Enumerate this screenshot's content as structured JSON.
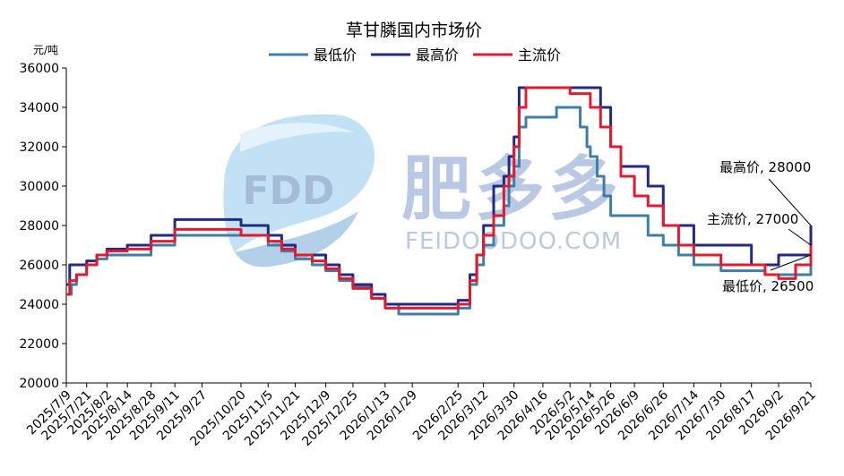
{
  "chart_data": {
    "type": "line",
    "title": "草甘膦国内市场价",
    "ylabel": "元/吨",
    "ylim": [
      20000,
      36000
    ],
    "yticks": [
      20000,
      22000,
      24000,
      26000,
      28000,
      30000,
      32000,
      34000,
      36000
    ],
    "yticklabels": [
      "20000",
      "22000",
      "24000",
      "26000",
      "28000",
      "30000",
      "32000",
      "34000",
      "36000"
    ],
    "grid": false,
    "legend_position": "top-center",
    "x_range": [
      "2025/7/9",
      "2026/9/21"
    ],
    "xticklabels": [
      "2025/7/9",
      "2025/7/21",
      "2025/8/2",
      "2025/8/14",
      "2025/8/28",
      "2025/9/11",
      "2025/9/27",
      "2025/10/20",
      "2025/11/5",
      "2025/11/21",
      "2025/12/9",
      "2025/12/25",
      "2026/1/13",
      "2026/1/29",
      "2026/2/25",
      "2026/3/12",
      "2026/3/30",
      "2026/4/16",
      "2026/5/2",
      "2026/5/14",
      "2026/5/26",
      "2026/6/9",
      "2026/6/26",
      "2026/7/14",
      "2026/7/30",
      "2026/8/17",
      "2026/9/2",
      "2026/9/21"
    ],
    "series": [
      {
        "name": "最低价",
        "color": "#3e7ea8",
        "x": [
          "2025/7/9",
          "2025/7/12",
          "2025/7/15",
          "2025/7/21",
          "2025/7/27",
          "2025/8/2",
          "2025/8/14",
          "2025/8/28",
          "2025/9/11",
          "2025/9/27",
          "2025/10/20",
          "2025/11/5",
          "2025/11/13",
          "2025/11/21",
          "2025/12/1",
          "2025/12/9",
          "2025/12/17",
          "2025/12/25",
          "2026/1/5",
          "2026/1/13",
          "2026/1/21",
          "2026/1/29",
          "2026/2/10",
          "2026/2/25",
          "2026/3/4",
          "2026/3/8",
          "2026/3/12",
          "2026/3/18",
          "2026/3/24",
          "2026/3/27",
          "2026/3/30",
          "2026/4/2",
          "2026/4/6",
          "2026/4/16",
          "2026/4/24",
          "2026/5/2",
          "2026/5/8",
          "2026/5/12",
          "2026/5/14",
          "2026/5/18",
          "2026/5/22",
          "2026/5/26",
          "2026/6/1",
          "2026/6/9",
          "2026/6/17",
          "2026/6/26",
          "2026/7/5",
          "2026/7/14",
          "2026/7/30",
          "2026/8/17",
          "2026/8/25",
          "2026/9/2",
          "2026/9/12",
          "2026/9/21"
        ],
        "y": [
          24500,
          25000,
          25500,
          26000,
          26300,
          26500,
          26500,
          27000,
          27500,
          27500,
          27500,
          27000,
          26700,
          26300,
          26000,
          25700,
          25200,
          24900,
          24300,
          24000,
          23500,
          23500,
          23500,
          23800,
          25000,
          26000,
          27000,
          28000,
          29000,
          30000,
          31000,
          33000,
          33500,
          33500,
          34000,
          34000,
          33000,
          32000,
          31500,
          30500,
          29500,
          28500,
          28500,
          28500,
          27500,
          27000,
          26500,
          26000,
          25700,
          25700,
          25500,
          25500,
          25500,
          26500
        ]
      },
      {
        "name": "最高价",
        "color": "#232a85",
        "x": [
          "2025/7/9",
          "2025/7/11",
          "2025/7/21",
          "2025/7/27",
          "2025/8/2",
          "2025/8/14",
          "2025/8/28",
          "2025/9/11",
          "2025/9/27",
          "2025/10/20",
          "2025/11/5",
          "2025/11/13",
          "2025/11/21",
          "2025/12/1",
          "2025/12/9",
          "2025/12/17",
          "2025/12/25",
          "2026/1/5",
          "2026/1/13",
          "2026/1/29",
          "2026/2/10",
          "2026/2/25",
          "2026/3/4",
          "2026/3/8",
          "2026/3/12",
          "2026/3/18",
          "2026/3/24",
          "2026/3/27",
          "2026/3/30",
          "2026/4/2",
          "2026/4/16",
          "2026/4/24",
          "2026/5/2",
          "2026/5/14",
          "2026/5/20",
          "2026/5/26",
          "2026/6/1",
          "2026/6/9",
          "2026/6/17",
          "2026/6/26",
          "2026/7/14",
          "2026/7/30",
          "2026/8/17",
          "2026/8/25",
          "2026/9/2",
          "2026/9/12",
          "2026/9/21"
        ],
        "y": [
          25000,
          26000,
          26200,
          26500,
          26800,
          27000,
          27500,
          28300,
          28300,
          28000,
          27500,
          27000,
          26500,
          26500,
          26000,
          25500,
          25000,
          24500,
          24000,
          24000,
          24000,
          24200,
          25500,
          26500,
          28000,
          30000,
          30500,
          31500,
          32500,
          35000,
          35000,
          35000,
          35000,
          35000,
          34000,
          32000,
          31000,
          31000,
          30000,
          28000,
          27000,
          27000,
          26000,
          26000,
          26500,
          26500,
          28000
        ]
      },
      {
        "name": "主流价",
        "color": "#e01b2f",
        "x": [
          "2025/7/9",
          "2025/7/11",
          "2025/7/15",
          "2025/7/21",
          "2025/7/27",
          "2025/8/2",
          "2025/8/14",
          "2025/8/28",
          "2025/9/11",
          "2025/9/27",
          "2025/10/20",
          "2025/11/5",
          "2025/11/13",
          "2025/11/21",
          "2025/12/1",
          "2025/12/9",
          "2025/12/17",
          "2025/12/25",
          "2026/1/5",
          "2026/1/13",
          "2026/1/29",
          "2026/2/10",
          "2026/2/25",
          "2026/3/4",
          "2026/3/8",
          "2026/3/12",
          "2026/3/18",
          "2026/3/24",
          "2026/3/27",
          "2026/3/30",
          "2026/4/2",
          "2026/4/6",
          "2026/4/16",
          "2026/4/24",
          "2026/5/2",
          "2026/5/10",
          "2026/5/14",
          "2026/5/20",
          "2026/5/26",
          "2026/6/1",
          "2026/6/9",
          "2026/6/17",
          "2026/6/26",
          "2026/7/5",
          "2026/7/14",
          "2026/7/30",
          "2026/8/17",
          "2026/8/25",
          "2026/9/2",
          "2026/9/12",
          "2026/9/21"
        ],
        "y": [
          24500,
          25200,
          25500,
          26000,
          26500,
          26700,
          26800,
          27200,
          27800,
          27800,
          27500,
          27200,
          26800,
          26500,
          26200,
          25800,
          25300,
          24800,
          24300,
          23800,
          23800,
          23800,
          24000,
          25200,
          26500,
          27500,
          28500,
          30000,
          30500,
          32000,
          34000,
          35000,
          35000,
          35000,
          34700,
          34700,
          34000,
          33000,
          32000,
          30500,
          29500,
          29000,
          28000,
          27000,
          26500,
          26000,
          26000,
          25500,
          25300,
          26000,
          27000
        ]
      }
    ],
    "annotations": [
      {
        "text": "最高价, 28000",
        "series": "最高价",
        "x": "2026/9/21",
        "y": 28000
      },
      {
        "text": "主流价, 27000",
        "series": "主流价",
        "x": "2026/9/21",
        "y": 27000
      },
      {
        "text": "最低价, 26500",
        "series": "最低价",
        "x": "2026/9/21",
        "y": 26500
      }
    ],
    "watermark": {
      "logo_text": "FDD",
      "brand_text": "肥多多",
      "url_text": "FEIDOODOO.COM",
      "color": "#3f6fb5"
    },
    "colors": {
      "axis": "#000000",
      "text": "#000000"
    }
  }
}
